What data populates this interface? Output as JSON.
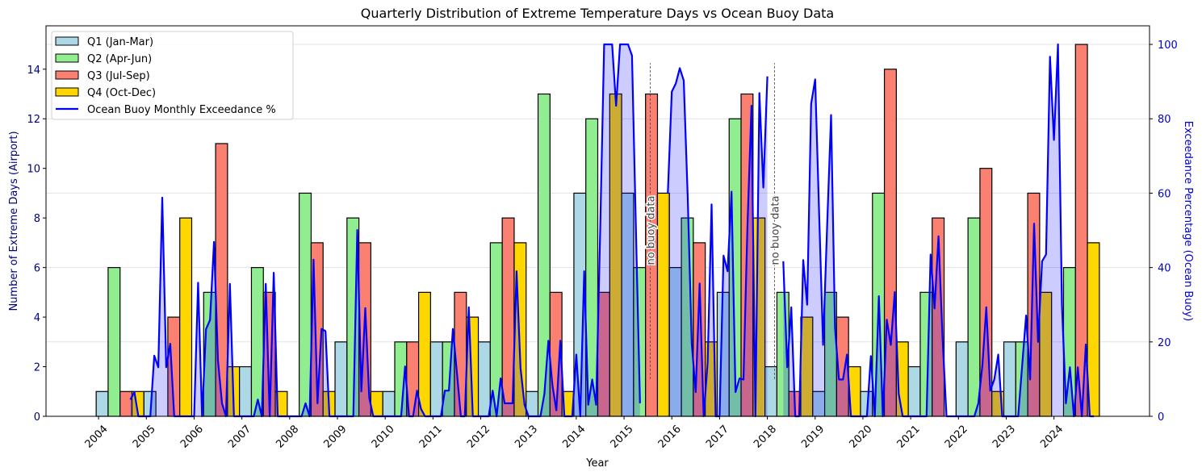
{
  "chart_data": {
    "type": "bar",
    "title": "Quarterly Distribution of Extreme Temperature Days vs Ocean Buoy Data",
    "xlabel": "Year",
    "ylabel": "Number of Extreme Days (Airport)",
    "ylabel_right": "Exceedance Percentage (Ocean Buoy)",
    "xlim": [
      2002.9,
      2026.0
    ],
    "ylim": [
      0,
      15.75
    ],
    "ylim_right": [
      0,
      105
    ],
    "x_ticks": [
      2004,
      2005,
      2006,
      2007,
      2008,
      2009,
      2010,
      2011,
      2012,
      2013,
      2014,
      2015,
      2016,
      2017,
      2018,
      2019,
      2020,
      2021,
      2022,
      2023,
      2024
    ],
    "y_ticks": [
      0,
      2,
      4,
      6,
      8,
      10,
      12,
      14
    ],
    "y_ticks_right": [
      0,
      20,
      40,
      60,
      80,
      100
    ],
    "grid": "horizontal, right axis",
    "legend_position": "top-left",
    "years": [
      2004,
      2005,
      2006,
      2007,
      2008,
      2009,
      2010,
      2011,
      2012,
      2013,
      2014,
      2015,
      2016,
      2017,
      2018,
      2019,
      2020,
      2021,
      2022,
      2023,
      2024
    ],
    "series": [
      {
        "name": "Q1 (Jan-Mar)",
        "color": "#add8e6",
        "values": [
          1,
          1,
          0,
          2,
          0,
          3,
          1,
          3,
          3,
          1,
          9,
          9,
          6,
          5,
          2,
          1,
          1,
          2,
          3,
          3,
          0
        ]
      },
      {
        "name": "Q2 (Apr-Jun)",
        "color": "#90ee90",
        "values": [
          6,
          0,
          5,
          6,
          9,
          8,
          3,
          3,
          7,
          13,
          12,
          6,
          8,
          12,
          5,
          5,
          9,
          5,
          8,
          3,
          6
        ]
      },
      {
        "name": "Q3 (Jul-Sep)",
        "color": "#fa8072",
        "values": [
          1,
          4,
          11,
          5,
          7,
          7,
          3,
          5,
          8,
          5,
          5,
          13,
          7,
          13,
          1,
          4,
          14,
          8,
          10,
          9,
          15
        ]
      },
      {
        "name": "Q4 (Oct-Dec)",
        "color": "#ffd700",
        "values": [
          1,
          8,
          2,
          1,
          1,
          1,
          5,
          4,
          7,
          1,
          13,
          9,
          3,
          8,
          4,
          2,
          3,
          0,
          1,
          5,
          7
        ]
      }
    ],
    "line_series": {
      "name": "Ocean Buoy Monthly Exceedance %",
      "color": "#0000ff",
      "axis": "right",
      "segments": [
        {
          "start": "2004-09",
          "values": [
            4.5,
            6.5,
            0,
            0,
            0,
            0,
            16.3,
            13.2,
            58.8,
            13.2,
            19.5,
            0,
            0,
            0,
            0,
            0,
            0,
            35.9,
            0,
            23.4,
            25.9,
            46.9,
            15,
            3.5,
            0,
            35.6,
            0,
            0,
            0,
            0,
            0,
            0,
            4.5,
            0,
            35.6,
            0,
            38.6,
            0,
            0,
            0,
            0,
            0,
            0,
            0,
            3.5,
            0,
            42.1,
            3.5,
            23.5,
            22.9,
            0,
            0,
            0,
            0,
            0,
            0,
            0,
            50.1,
            6.7,
            29.1,
            5,
            0,
            0,
            0,
            0,
            0,
            0,
            0,
            0,
            13.4,
            0,
            0,
            6.9,
            2,
            0,
            0,
            0,
            0,
            0,
            6.9,
            6.9,
            23.5,
            12,
            0,
            0,
            29.3,
            0,
            0,
            0,
            0,
            0,
            6.9,
            0,
            10.2,
            3.5,
            3.5,
            3.5,
            39,
            13,
            3.1,
            0,
            0,
            0,
            0,
            6.1,
            20.3,
            8.4,
            1.6,
            20.3,
            0,
            0,
            0,
            16.6,
            0,
            39,
            3.1,
            9.9,
            3.1,
            50,
            100,
            100,
            100,
            83.5,
            100,
            100,
            100,
            97,
            50,
            3.5
          ]
        },
        {
          "start": "2015-12",
          "values": [
            60,
            87.3,
            89.5,
            93.6,
            90.3,
            58.5,
            19.6,
            6.5,
            35.7,
            0,
            14.4,
            57,
            0,
            0,
            43.2,
            39,
            60.4,
            6.5,
            10.2,
            9.9,
            51,
            83.5,
            0,
            86.9,
            61.5,
            91.4
          ]
        },
        {
          "start": "2018-05",
          "values": [
            41.7,
            13.2,
            29.3,
            0,
            0,
            42,
            30,
            84,
            90.6,
            54.7,
            19.2,
            51,
            81,
            23.7,
            9.9,
            9.9,
            16.6,
            0,
            0,
            0,
            0,
            0,
            16.2,
            0,
            32.3,
            0,
            26,
            19.2,
            33.4,
            6.1,
            0,
            0,
            0,
            0,
            0,
            0,
            0,
            43.5,
            29,
            48.4,
            21,
            0,
            0,
            0,
            0,
            0,
            0,
            0,
            0,
            3.5,
            13.6,
            29.3,
            6.9,
            9.9,
            16.6,
            0,
            0,
            0,
            0,
            0,
            13.6,
            27.1,
            9.9,
            51.8,
            20,
            41.7,
            43.5,
            96.7,
            74.3,
            100,
            30,
            3.5,
            13.2,
            0,
            13.2,
            0,
            19.3,
            0,
            0
          ]
        }
      ]
    },
    "annotations": [
      {
        "text": "no buoy data",
        "x": 2015.55,
        "y_range": [
          10,
          95
        ]
      },
      {
        "text": "no buoy data",
        "x": 2018.15,
        "y_range": [
          10,
          95
        ]
      }
    ]
  }
}
